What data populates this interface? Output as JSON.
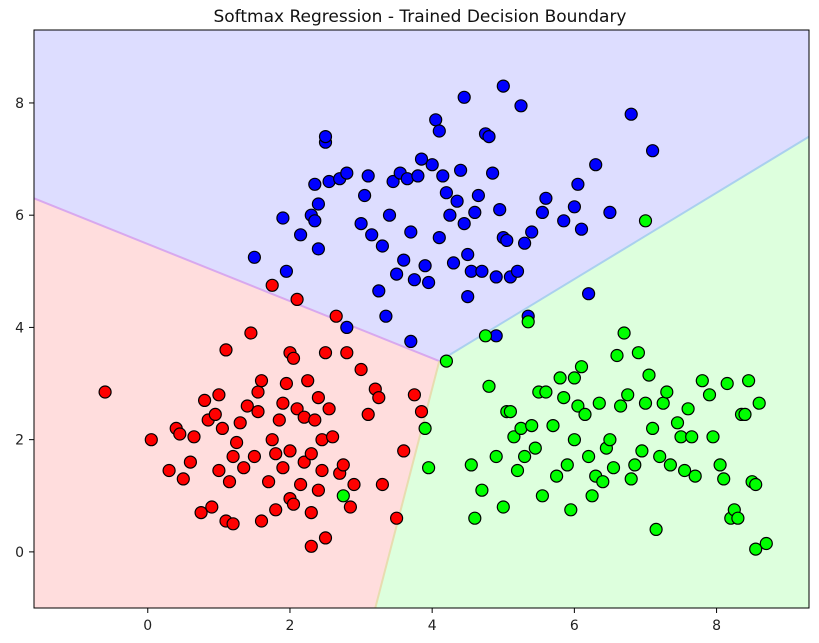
{
  "chart_data": {
    "type": "scatter",
    "title": "Softmax Regression - Trained Decision Boundary",
    "xlabel": "",
    "ylabel": "",
    "xlim": [
      -1.6,
      9.3
    ],
    "ylim": [
      -1.0,
      9.3
    ],
    "x_ticks": [
      0,
      2,
      4,
      6,
      8
    ],
    "y_ticks": [
      0,
      2,
      4,
      6,
      8
    ],
    "grid": false,
    "legend": "none",
    "boundaries": {
      "center": [
        4.1,
        3.4
      ],
      "red_blue": [
        [
          -1.6,
          6.3
        ],
        [
          4.1,
          3.4
        ]
      ],
      "blue_green": [
        [
          4.1,
          3.4
        ],
        [
          9.3,
          7.4
        ]
      ],
      "red_green": [
        [
          4.1,
          3.4
        ],
        [
          3.2,
          -1.0
        ]
      ]
    },
    "region_colors": {
      "red": "#ffdddd",
      "blue": "#ddddff",
      "green": "#ddffdd"
    },
    "series": [
      {
        "color": "#ff0000",
        "points": [
          [
            -0.6,
            2.85
          ],
          [
            0.05,
            2.0
          ],
          [
            0.3,
            1.45
          ],
          [
            0.4,
            2.2
          ],
          [
            0.45,
            2.1
          ],
          [
            0.5,
            1.3
          ],
          [
            0.6,
            1.6
          ],
          [
            0.65,
            2.05
          ],
          [
            0.75,
            0.7
          ],
          [
            0.8,
            2.7
          ],
          [
            0.85,
            2.35
          ],
          [
            0.9,
            0.8
          ],
          [
            0.95,
            2.45
          ],
          [
            1.0,
            1.45
          ],
          [
            1.0,
            2.8
          ],
          [
            1.05,
            2.2
          ],
          [
            1.1,
            0.55
          ],
          [
            1.1,
            3.6
          ],
          [
            1.15,
            1.25
          ],
          [
            1.2,
            0.5
          ],
          [
            1.2,
            1.7
          ],
          [
            1.25,
            1.95
          ],
          [
            1.3,
            2.3
          ],
          [
            1.35,
            1.5
          ],
          [
            1.4,
            2.6
          ],
          [
            1.45,
            3.9
          ],
          [
            1.5,
            1.7
          ],
          [
            1.55,
            2.5
          ],
          [
            1.55,
            2.85
          ],
          [
            1.6,
            0.55
          ],
          [
            1.6,
            3.05
          ],
          [
            1.7,
            1.25
          ],
          [
            1.75,
            2.0
          ],
          [
            1.8,
            0.75
          ],
          [
            1.8,
            1.75
          ],
          [
            1.85,
            2.35
          ],
          [
            1.9,
            1.5
          ],
          [
            1.9,
            2.65
          ],
          [
            1.95,
            3.0
          ],
          [
            2.0,
            0.95
          ],
          [
            2.0,
            1.8
          ],
          [
            2.0,
            3.55
          ],
          [
            2.05,
            0.85
          ],
          [
            2.05,
            3.45
          ],
          [
            2.1,
            2.55
          ],
          [
            2.1,
            4.5
          ],
          [
            2.15,
            1.2
          ],
          [
            2.2,
            1.6
          ],
          [
            2.2,
            2.4
          ],
          [
            2.25,
            3.05
          ],
          [
            2.3,
            0.1
          ],
          [
            2.3,
            0.7
          ],
          [
            2.3,
            1.75
          ],
          [
            2.35,
            2.35
          ],
          [
            2.4,
            1.1
          ],
          [
            2.4,
            2.75
          ],
          [
            2.45,
            1.45
          ],
          [
            2.45,
            2.0
          ],
          [
            2.5,
            0.25
          ],
          [
            2.5,
            3.55
          ],
          [
            2.55,
            2.55
          ],
          [
            2.6,
            2.05
          ],
          [
            2.65,
            4.2
          ],
          [
            2.7,
            1.4
          ],
          [
            2.75,
            1.55
          ],
          [
            2.8,
            3.55
          ],
          [
            2.85,
            0.8
          ],
          [
            2.9,
            1.2
          ],
          [
            3.0,
            3.25
          ],
          [
            3.1,
            2.45
          ],
          [
            3.2,
            2.9
          ],
          [
            3.25,
            2.75
          ],
          [
            3.3,
            1.2
          ],
          [
            3.5,
            0.6
          ],
          [
            3.6,
            1.8
          ],
          [
            3.75,
            2.8
          ],
          [
            3.85,
            2.5
          ],
          [
            1.75,
            4.75
          ]
        ]
      },
      {
        "color": "#0000ff",
        "points": [
          [
            1.5,
            5.25
          ],
          [
            1.9,
            5.95
          ],
          [
            1.95,
            5.0
          ],
          [
            2.15,
            5.65
          ],
          [
            2.3,
            6.0
          ],
          [
            2.35,
            5.9
          ],
          [
            2.35,
            6.55
          ],
          [
            2.4,
            6.2
          ],
          [
            2.4,
            5.4
          ],
          [
            2.5,
            7.3
          ],
          [
            2.5,
            7.4
          ],
          [
            2.55,
            6.6
          ],
          [
            2.7,
            6.65
          ],
          [
            2.8,
            6.75
          ],
          [
            2.8,
            4.0
          ],
          [
            3.0,
            5.85
          ],
          [
            3.05,
            6.35
          ],
          [
            3.1,
            6.7
          ],
          [
            3.15,
            5.65
          ],
          [
            3.25,
            4.65
          ],
          [
            3.3,
            5.45
          ],
          [
            3.35,
            4.2
          ],
          [
            3.4,
            6.0
          ],
          [
            3.45,
            6.6
          ],
          [
            3.5,
            4.95
          ],
          [
            3.55,
            6.75
          ],
          [
            3.6,
            5.2
          ],
          [
            3.65,
            6.65
          ],
          [
            3.7,
            5.7
          ],
          [
            3.75,
            4.85
          ],
          [
            3.8,
            6.7
          ],
          [
            3.85,
            7.0
          ],
          [
            3.9,
            5.1
          ],
          [
            3.95,
            4.8
          ],
          [
            4.0,
            6.9
          ],
          [
            4.05,
            7.7
          ],
          [
            4.1,
            7.5
          ],
          [
            4.1,
            5.6
          ],
          [
            4.15,
            6.7
          ],
          [
            4.2,
            6.4
          ],
          [
            4.25,
            6.0
          ],
          [
            4.3,
            5.15
          ],
          [
            4.35,
            6.25
          ],
          [
            4.4,
            6.8
          ],
          [
            4.45,
            8.1
          ],
          [
            4.45,
            5.85
          ],
          [
            4.5,
            5.3
          ],
          [
            4.55,
            5.0
          ],
          [
            4.6,
            6.05
          ],
          [
            4.65,
            6.35
          ],
          [
            4.7,
            5.0
          ],
          [
            4.75,
            7.45
          ],
          [
            4.8,
            7.4
          ],
          [
            4.85,
            6.75
          ],
          [
            4.9,
            4.9
          ],
          [
            4.95,
            6.1
          ],
          [
            5.0,
            5.6
          ],
          [
            5.0,
            8.3
          ],
          [
            5.05,
            5.55
          ],
          [
            5.1,
            4.9
          ],
          [
            5.2,
            5.0
          ],
          [
            5.25,
            7.95
          ],
          [
            5.3,
            5.5
          ],
          [
            5.35,
            4.2
          ],
          [
            5.4,
            5.7
          ],
          [
            5.55,
            6.05
          ],
          [
            5.6,
            6.3
          ],
          [
            5.85,
            5.9
          ],
          [
            6.0,
            6.15
          ],
          [
            6.05,
            6.55
          ],
          [
            6.1,
            5.75
          ],
          [
            6.2,
            4.6
          ],
          [
            6.3,
            6.9
          ],
          [
            6.5,
            6.05
          ],
          [
            6.8,
            7.8
          ],
          [
            7.1,
            7.15
          ],
          [
            3.7,
            3.75
          ],
          [
            4.9,
            3.85
          ],
          [
            4.5,
            4.55
          ]
        ]
      },
      {
        "color": "#00ff00",
        "points": [
          [
            2.75,
            1.0
          ],
          [
            3.9,
            2.2
          ],
          [
            3.95,
            1.5
          ],
          [
            4.2,
            3.4
          ],
          [
            4.55,
            1.55
          ],
          [
            4.6,
            0.6
          ],
          [
            4.7,
            1.1
          ],
          [
            4.75,
            3.85
          ],
          [
            4.8,
            2.95
          ],
          [
            4.9,
            1.7
          ],
          [
            5.0,
            0.8
          ],
          [
            5.05,
            2.5
          ],
          [
            5.1,
            2.5
          ],
          [
            5.15,
            2.05
          ],
          [
            5.2,
            1.45
          ],
          [
            5.25,
            2.2
          ],
          [
            5.3,
            1.7
          ],
          [
            5.35,
            4.1
          ],
          [
            5.4,
            2.25
          ],
          [
            5.45,
            1.85
          ],
          [
            5.5,
            2.85
          ],
          [
            5.55,
            1.0
          ],
          [
            5.6,
            2.85
          ],
          [
            5.7,
            2.25
          ],
          [
            5.75,
            1.35
          ],
          [
            5.8,
            3.1
          ],
          [
            5.85,
            2.75
          ],
          [
            5.9,
            1.55
          ],
          [
            5.95,
            0.75
          ],
          [
            6.0,
            3.1
          ],
          [
            6.05,
            2.6
          ],
          [
            6.1,
            3.3
          ],
          [
            6.15,
            2.45
          ],
          [
            6.2,
            1.7
          ],
          [
            6.25,
            1.0
          ],
          [
            6.3,
            1.35
          ],
          [
            6.35,
            2.65
          ],
          [
            6.4,
            1.25
          ],
          [
            6.45,
            1.85
          ],
          [
            6.5,
            2.0
          ],
          [
            6.55,
            1.5
          ],
          [
            6.6,
            3.5
          ],
          [
            6.65,
            2.6
          ],
          [
            6.7,
            3.9
          ],
          [
            6.75,
            2.8
          ],
          [
            6.8,
            1.3
          ],
          [
            6.85,
            1.55
          ],
          [
            6.9,
            3.55
          ],
          [
            6.95,
            1.8
          ],
          [
            7.0,
            2.65
          ],
          [
            7.05,
            3.15
          ],
          [
            7.1,
            2.2
          ],
          [
            7.15,
            0.4
          ],
          [
            7.2,
            1.7
          ],
          [
            7.25,
            2.65
          ],
          [
            7.3,
            2.85
          ],
          [
            7.35,
            1.55
          ],
          [
            7.45,
            2.3
          ],
          [
            7.5,
            2.05
          ],
          [
            7.55,
            1.45
          ],
          [
            7.6,
            2.55
          ],
          [
            7.65,
            2.05
          ],
          [
            7.7,
            1.35
          ],
          [
            7.8,
            3.05
          ],
          [
            7.9,
            2.8
          ],
          [
            7.95,
            2.05
          ],
          [
            8.05,
            1.55
          ],
          [
            8.1,
            1.3
          ],
          [
            8.15,
            3.0
          ],
          [
            8.2,
            0.6
          ],
          [
            8.25,
            0.75
          ],
          [
            8.3,
            0.6
          ],
          [
            8.35,
            2.45
          ],
          [
            8.4,
            2.45
          ],
          [
            8.45,
            3.05
          ],
          [
            8.5,
            1.25
          ],
          [
            8.55,
            1.2
          ],
          [
            8.55,
            0.05
          ],
          [
            8.7,
            0.15
          ],
          [
            8.6,
            2.65
          ],
          [
            6.0,
            2.0
          ],
          [
            7.0,
            5.9
          ]
        ]
      }
    ]
  }
}
